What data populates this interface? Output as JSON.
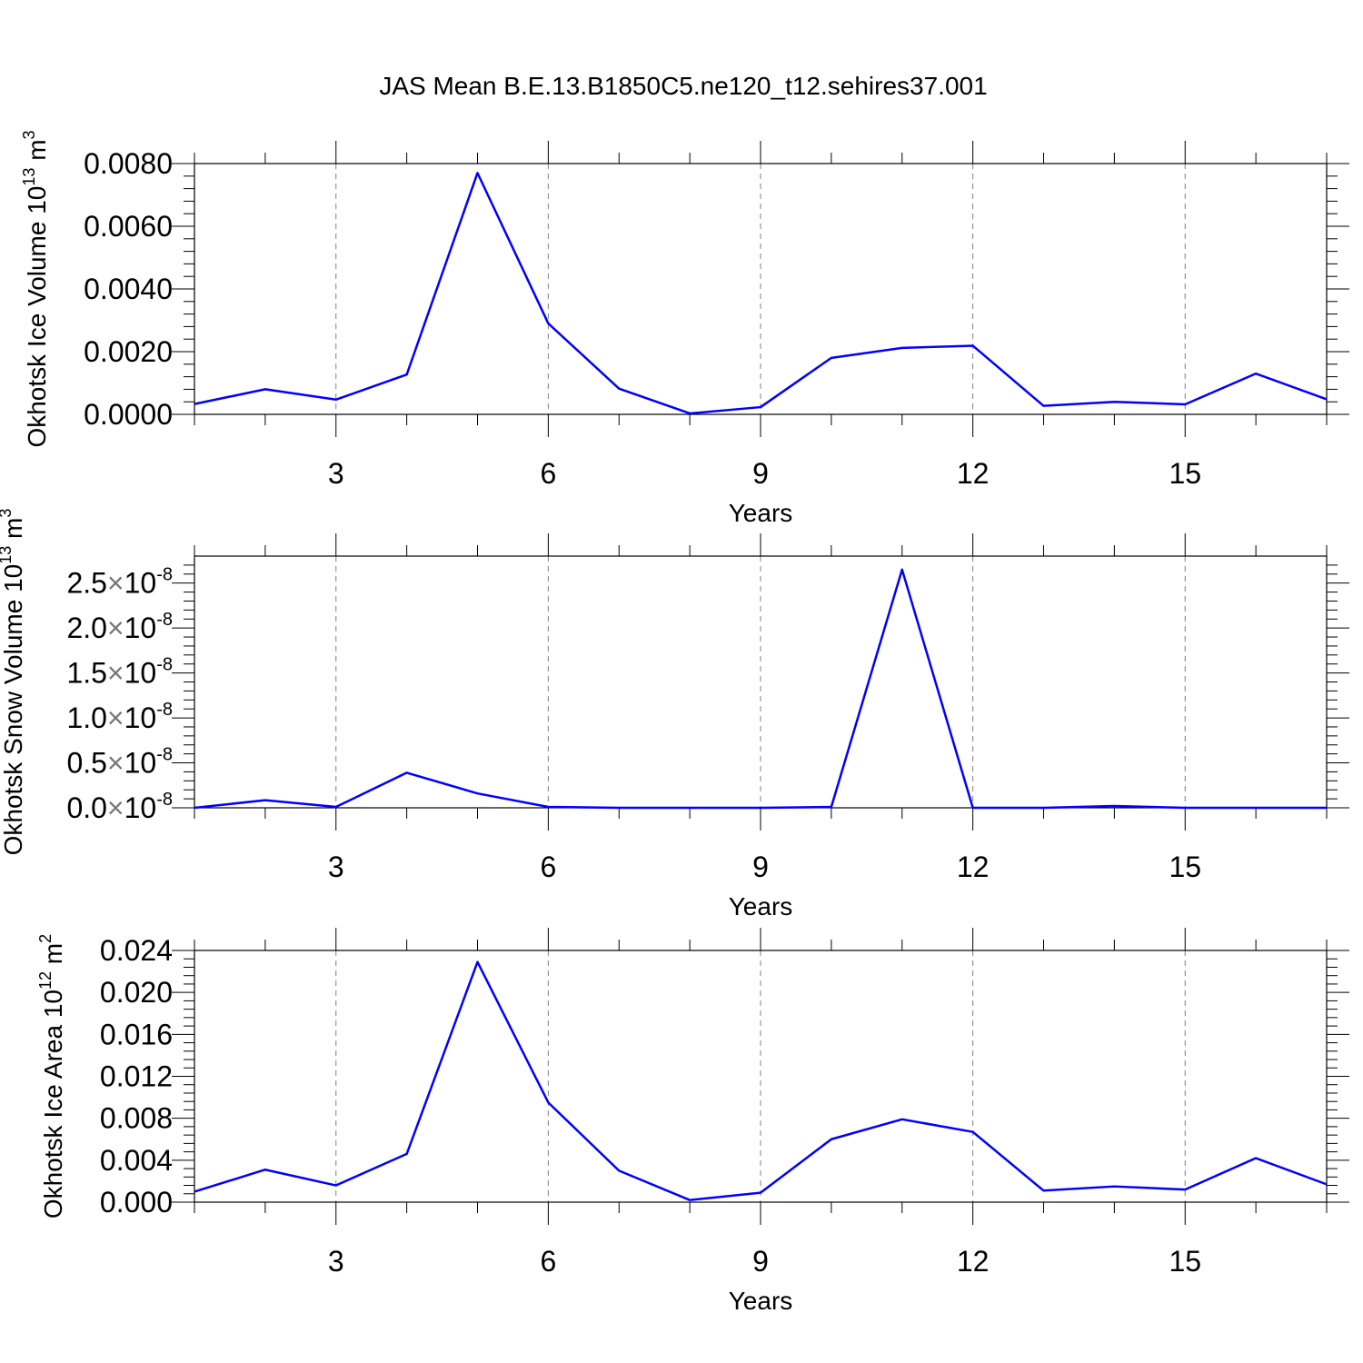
{
  "title": "JAS Mean B.E.13.B1850C5.ne120_t12.sehires37.001",
  "colors": {
    "line": "#0000ff",
    "axis": "#000000",
    "grid": "#808080"
  },
  "chart_data": [
    {
      "type": "line",
      "ylabel": "Okhotsk Ice Volume 10",
      "ylabel_sup": "13",
      "ylabel_unit": " m",
      "ylabel_unit_sup": "3",
      "xlabel": "Years",
      "xlim": [
        1,
        17
      ],
      "ylim": [
        0,
        0.008
      ],
      "xticks": [
        3,
        6,
        9,
        12,
        15
      ],
      "xtick_labels": [
        "3",
        "6",
        "9",
        "12",
        "15"
      ],
      "yticks": [
        0,
        0.002,
        0.004,
        0.006,
        0.008
      ],
      "ytick_labels": [
        "0.0000",
        "0.0020",
        "0.0040",
        "0.0060",
        "0.0080"
      ],
      "grid": "vertical dashed",
      "x": [
        1,
        2,
        3,
        4,
        5,
        6,
        7,
        8,
        9,
        10,
        11,
        12,
        13,
        14,
        15,
        16,
        17
      ],
      "values": [
        0.00033,
        0.0008,
        0.00047,
        0.00127,
        0.0077,
        0.0029,
        0.00082,
        3e-05,
        0.00023,
        0.0018,
        0.00212,
        0.00219,
        0.00027,
        0.0004,
        0.00032,
        0.0013,
        0.00048
      ]
    },
    {
      "type": "line",
      "ylabel": "Okhotsk Snow Volume 10",
      "ylabel_sup": "13",
      "ylabel_unit": " m",
      "ylabel_unit_sup": "3",
      "xlabel": "Years",
      "xlim": [
        1,
        17
      ],
      "ylim": [
        0,
        2.8e-08
      ],
      "xticks": [
        3,
        6,
        9,
        12,
        15
      ],
      "xtick_labels": [
        "3",
        "6",
        "9",
        "12",
        "15"
      ],
      "yticks": [
        0,
        5e-09,
        1e-08,
        1.5e-08,
        2e-08,
        2.5e-08
      ],
      "ytick_labels": [
        "0.0",
        "0.5",
        "1.0",
        "1.5",
        "2.0",
        "2.5"
      ],
      "ytick_multiplier": "×10",
      "ytick_exponent": "-8",
      "grid": "vertical dashed",
      "x": [
        1,
        2,
        3,
        4,
        5,
        6,
        7,
        8,
        9,
        10,
        11,
        12,
        13,
        14,
        15,
        16,
        17
      ],
      "values": [
        0.0,
        8.5e-10,
        1e-10,
        3.9e-09,
        1.6e-09,
        1e-10,
        0.0,
        0.0,
        0.0,
        1e-10,
        2.65e-08,
        0.0,
        0.0,
        2e-10,
        0.0,
        0.0,
        0.0
      ]
    },
    {
      "type": "line",
      "ylabel": "Okhotsk Ice Area 10",
      "ylabel_sup": "12",
      "ylabel_unit": " m",
      "ylabel_unit_sup": "2",
      "xlabel": "Years",
      "xlim": [
        1,
        17
      ],
      "ylim": [
        0,
        0.024
      ],
      "xticks": [
        3,
        6,
        9,
        12,
        15
      ],
      "xtick_labels": [
        "3",
        "6",
        "9",
        "12",
        "15"
      ],
      "yticks": [
        0,
        0.004,
        0.008,
        0.012,
        0.016,
        0.02,
        0.024
      ],
      "ytick_labels": [
        "0.000",
        "0.004",
        "0.008",
        "0.012",
        "0.016",
        "0.020",
        "0.024"
      ],
      "grid": "vertical dashed",
      "x": [
        1,
        2,
        3,
        4,
        5,
        6,
        7,
        8,
        9,
        10,
        11,
        12,
        13,
        14,
        15,
        16,
        17
      ],
      "values": [
        0.001,
        0.0031,
        0.0016,
        0.0046,
        0.0229,
        0.0095,
        0.003,
        0.0002,
        0.0009,
        0.006,
        0.0079,
        0.0067,
        0.0011,
        0.0015,
        0.0012,
        0.0042,
        0.0017
      ]
    }
  ]
}
